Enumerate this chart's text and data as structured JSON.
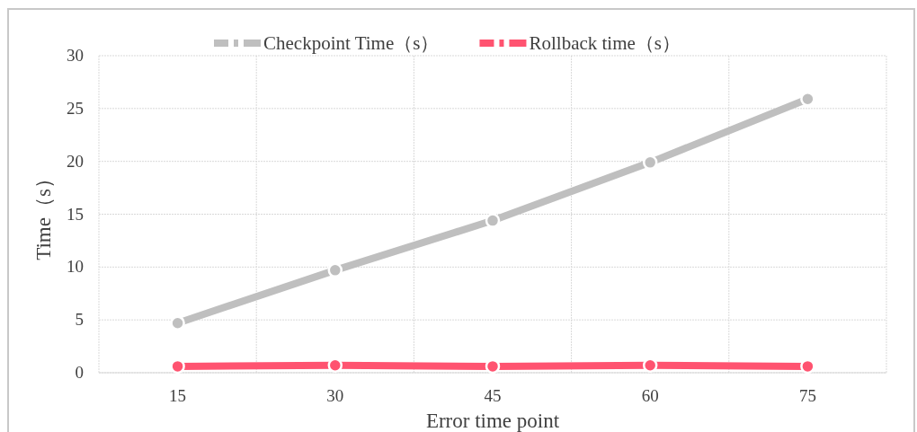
{
  "chart_data": {
    "type": "line",
    "xlabel": "Error time point",
    "ylabel": "Time（s）",
    "categories": [
      "15",
      "30",
      "45",
      "60",
      "75"
    ],
    "series": [
      {
        "name": "Checkpoint Time（s）",
        "color": "#bfbfbf",
        "values": [
          4.7,
          9.7,
          14.4,
          19.9,
          25.9
        ]
      },
      {
        "name": "Rollback time（s）",
        "color": "#ff5370",
        "values": [
          0.6,
          0.7,
          0.6,
          0.7,
          0.6
        ]
      }
    ],
    "ylim": [
      0,
      30
    ],
    "yticks": [
      0,
      5,
      10,
      15,
      20,
      25,
      30
    ],
    "grid": true,
    "legend": "top",
    "marker": "circle",
    "line_style": "solid"
  }
}
